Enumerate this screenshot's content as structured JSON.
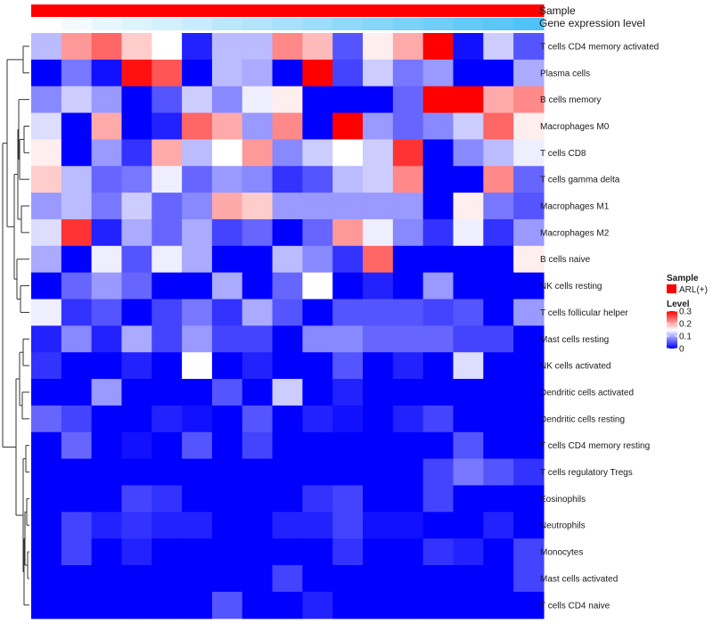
{
  "chart_data": {
    "type": "heatmap",
    "title": "",
    "annotation_rows": [
      {
        "name": "Sample",
        "kind": "categorical",
        "color": "#ff0000"
      },
      {
        "name": "Gene expression level",
        "kind": "gradient",
        "values": [
          0.0,
          0.06,
          0.13,
          0.19,
          0.25,
          0.31,
          0.38,
          0.44,
          0.5,
          0.56,
          0.63,
          0.69,
          0.75,
          0.81,
          0.88,
          0.94,
          1.0
        ],
        "low_color": "#ffffff",
        "high_color": "#4fc3f7"
      }
    ],
    "rows": [
      "T cells CD4 memory activated",
      "Plasma cells",
      "B cells memory",
      "Macrophages M0",
      "T cells CD8",
      "T cells gamma delta",
      "Macrophages M1",
      "Macrophages M2",
      "B cells naive",
      "NK cells resting",
      "T cells follicular helper",
      "Mast cells resting",
      "NK cells activated",
      "Dendritic cells activated",
      "Dendritic cells resting",
      "T cells CD4 memory resting",
      "T cells regulatory  Tregs",
      "Eosinophils",
      "Neutrophils",
      "Monocytes",
      "Mast cells activated",
      "T cells CD4 naive"
    ],
    "values": [
      [
        0.11,
        0.21,
        0.24,
        0.18,
        0.15,
        0.02,
        0.11,
        0.11,
        0.22,
        0.19,
        0.05,
        0.16,
        0.2,
        0.3,
        0.01,
        0.12,
        0.05
      ],
      [
        0.0,
        0.07,
        0.01,
        0.29,
        0.25,
        0.0,
        0.11,
        0.1,
        0.0,
        0.3,
        0.04,
        0.12,
        0.07,
        0.09,
        0.0,
        0.0,
        0.1
      ],
      [
        0.08,
        0.12,
        0.09,
        0.0,
        0.05,
        0.12,
        0.08,
        0.14,
        0.16,
        0.0,
        0.0,
        0.0,
        0.06,
        0.3,
        0.3,
        0.2,
        0.22
      ],
      [
        0.13,
        0.0,
        0.2,
        0.0,
        0.02,
        0.24,
        0.2,
        0.09,
        0.22,
        0.0,
        0.3,
        0.09,
        0.06,
        0.08,
        0.12,
        0.24,
        0.16
      ],
      [
        0.16,
        0.0,
        0.09,
        0.03,
        0.2,
        0.11,
        0.15,
        0.21,
        0.08,
        0.12,
        0.15,
        0.12,
        0.27,
        0.0,
        0.08,
        0.11,
        0.14
      ],
      [
        0.18,
        0.11,
        0.06,
        0.07,
        0.14,
        0.06,
        0.09,
        0.08,
        0.03,
        0.05,
        0.11,
        0.12,
        0.22,
        0.0,
        0.0,
        0.22,
        0.06
      ],
      [
        0.09,
        0.11,
        0.07,
        0.12,
        0.06,
        0.08,
        0.2,
        0.18,
        0.09,
        0.09,
        0.09,
        0.09,
        0.09,
        0.0,
        0.16,
        0.07,
        0.05
      ],
      [
        0.13,
        0.27,
        0.02,
        0.1,
        0.06,
        0.1,
        0.04,
        0.06,
        0.0,
        0.06,
        0.21,
        0.14,
        0.08,
        0.03,
        0.14,
        0.03,
        0.09
      ],
      [
        0.1,
        0.0,
        0.14,
        0.05,
        0.14,
        0.1,
        0.0,
        0.0,
        0.11,
        0.08,
        0.03,
        0.24,
        0.0,
        0.0,
        0.0,
        0.0,
        0.16
      ],
      [
        0.0,
        0.06,
        0.09,
        0.06,
        0.0,
        0.0,
        0.1,
        0.0,
        0.06,
        0.15,
        0.0,
        0.02,
        0.0,
        0.09,
        0.0,
        0.0,
        0.0
      ],
      [
        0.14,
        0.03,
        0.05,
        0.0,
        0.04,
        0.07,
        0.03,
        0.1,
        0.05,
        0.0,
        0.05,
        0.05,
        0.05,
        0.04,
        0.05,
        0.0,
        0.09
      ],
      [
        0.02,
        0.08,
        0.02,
        0.1,
        0.04,
        0.09,
        0.04,
        0.04,
        0.0,
        0.08,
        0.08,
        0.06,
        0.06,
        0.06,
        0.04,
        0.04,
        0.0
      ],
      [
        0.03,
        0.0,
        0.0,
        0.02,
        0.0,
        0.15,
        0.0,
        0.02,
        0.0,
        0.0,
        0.05,
        0.0,
        0.02,
        0.0,
        0.13,
        0.0,
        0.0
      ],
      [
        0.0,
        0.0,
        0.09,
        0.0,
        0.0,
        0.0,
        0.05,
        0.0,
        0.12,
        0.0,
        0.02,
        0.0,
        0.0,
        0.0,
        0.0,
        0.0,
        0.0
      ],
      [
        0.06,
        0.04,
        0.0,
        0.0,
        0.02,
        0.01,
        0.0,
        0.05,
        0.0,
        0.02,
        0.01,
        0.0,
        0.02,
        0.04,
        0.0,
        0.0,
        0.0
      ],
      [
        0.0,
        0.06,
        0.0,
        0.01,
        0.0,
        0.05,
        0.0,
        0.04,
        0.0,
        0.0,
        0.0,
        0.0,
        0.0,
        0.0,
        0.05,
        0.0,
        0.0
      ],
      [
        0.0,
        0.0,
        0.0,
        0.0,
        0.0,
        0.0,
        0.0,
        0.0,
        0.0,
        0.0,
        0.0,
        0.0,
        0.0,
        0.04,
        0.07,
        0.05,
        0.03
      ],
      [
        0.0,
        0.0,
        0.0,
        0.04,
        0.03,
        0.0,
        0.0,
        0.0,
        0.0,
        0.03,
        0.04,
        0.0,
        0.0,
        0.04,
        0.0,
        0.0,
        0.0
      ],
      [
        0.0,
        0.04,
        0.02,
        0.03,
        0.02,
        0.02,
        0.0,
        0.0,
        0.02,
        0.02,
        0.04,
        0.01,
        0.01,
        0.0,
        0.0,
        0.02,
        0.0
      ],
      [
        0.0,
        0.04,
        0.0,
        0.02,
        0.0,
        0.0,
        0.0,
        0.0,
        0.0,
        0.0,
        0.03,
        0.0,
        0.0,
        0.03,
        0.02,
        0.0,
        0.04
      ],
      [
        0.0,
        0.0,
        0.0,
        0.0,
        0.0,
        0.0,
        0.0,
        0.0,
        0.04,
        0.0,
        0.0,
        0.0,
        0.0,
        0.0,
        0.0,
        0.0,
        0.04
      ],
      [
        0.0,
        0.0,
        0.0,
        0.0,
        0.0,
        0.0,
        0.05,
        0.0,
        0.0,
        0.02,
        0.0,
        0.0,
        0.0,
        0.0,
        0.0,
        0.0,
        0.0
      ]
    ],
    "color_scale": {
      "min": 0,
      "max": 0.3,
      "low": "#0000ff",
      "mid": "#ffffff",
      "high": "#ff0000",
      "mid_value": 0.15
    },
    "legend": {
      "sample_title": "Sample",
      "sample_entries": [
        {
          "label": "ARL(+)",
          "color": "#ff0000"
        }
      ],
      "level_title": "Level",
      "level_ticks": [
        {
          "value": 0.3,
          "label": "0.3"
        },
        {
          "value": 0.2,
          "label": "0.2"
        },
        {
          "value": 0.1,
          "label": "0.1"
        },
        {
          "value": 0,
          "label": "0"
        }
      ],
      "placement": "right"
    },
    "row_dendrogram": true
  }
}
